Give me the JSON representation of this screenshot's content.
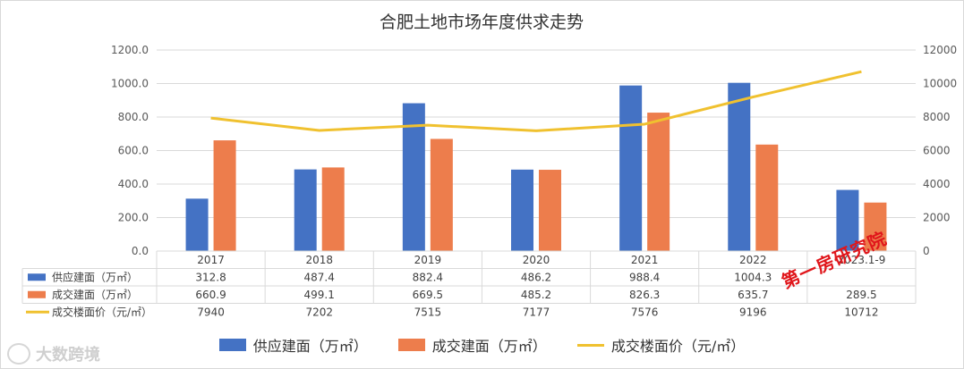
{
  "chart_data": {
    "type": "bar",
    "title": "合肥土地市场年度供求走势",
    "categories": [
      "2017",
      "2018",
      "2019",
      "2020",
      "2021",
      "2022",
      "2023.1-9"
    ],
    "series": [
      {
        "name": "供应建面（万㎡）",
        "type": "bar",
        "axis": "left",
        "color": "#4472c4",
        "values": [
          312.8,
          487.4,
          882.4,
          486.2,
          988.4,
          1004.3,
          365.0
        ],
        "table_labels": [
          "312.8",
          "487.4",
          "882.4",
          "486.2",
          "988.4",
          "1004.3",
          ""
        ]
      },
      {
        "name": "成交建面（万㎡）",
        "type": "bar",
        "axis": "left",
        "color": "#ed7d4c",
        "values": [
          660.9,
          499.1,
          669.5,
          485.2,
          826.3,
          635.7,
          289.5
        ],
        "table_labels": [
          "660.9",
          "499.1",
          "669.5",
          "485.2",
          "826.3",
          "635.7",
          "289.5"
        ]
      },
      {
        "name": "成交楼面价（元/㎡）",
        "type": "line",
        "axis": "right",
        "color": "#f0c12f",
        "values": [
          7940,
          7202,
          7515,
          7177,
          7576,
          9196,
          10712
        ],
        "table_labels": [
          "7940",
          "7202",
          "7515",
          "7177",
          "7576",
          "9196",
          "10712"
        ]
      }
    ],
    "y_left": {
      "min": 0,
      "max": 1200,
      "step": 200,
      "tick_labels": [
        "0.0",
        "200.0",
        "400.0",
        "600.0",
        "800.0",
        "1000.0",
        "1200.0"
      ]
    },
    "y_right": {
      "min": 0,
      "max": 12000,
      "step": 2000,
      "tick_labels": [
        "0",
        "2000",
        "4000",
        "6000",
        "8000",
        "10000",
        "12000"
      ]
    },
    "grid": true,
    "legend_position": "bottom",
    "data_table": true
  },
  "watermarks": {
    "red_stamp": "第一房研究院",
    "logo_text": "大数跨境"
  }
}
